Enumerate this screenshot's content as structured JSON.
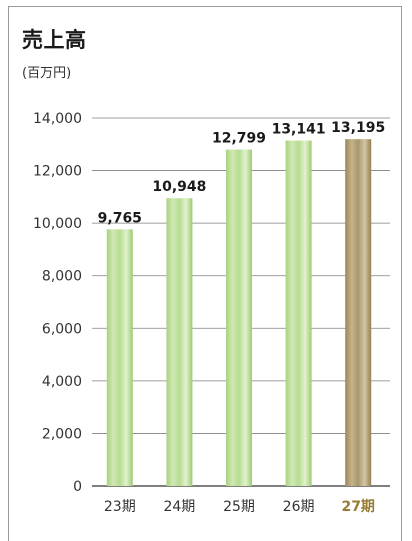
{
  "title": "売上高",
  "unit": "(百万円)",
  "colors": {
    "bar_normal": "#b9dd96",
    "bar_highlight": "#b09c72",
    "highlight_label": "#9a7b34",
    "grid": "#7f7f7f"
  },
  "chart_data": {
    "type": "bar",
    "title": "売上高",
    "ylabel": "(百万円)",
    "categories": [
      "23期",
      "24期",
      "25期",
      "26期",
      "27期"
    ],
    "values": [
      9765,
      10948,
      12799,
      13141,
      13195
    ],
    "value_labels": [
      "9,765",
      "10,948",
      "12,799",
      "13,141",
      "13,195"
    ],
    "highlight_index": 4,
    "ylim": [
      0,
      14000
    ],
    "yticks": [
      "0",
      "2,000",
      "4,000",
      "6,000",
      "8,000",
      "10,000",
      "12,000",
      "14,000"
    ],
    "grid": true
  }
}
